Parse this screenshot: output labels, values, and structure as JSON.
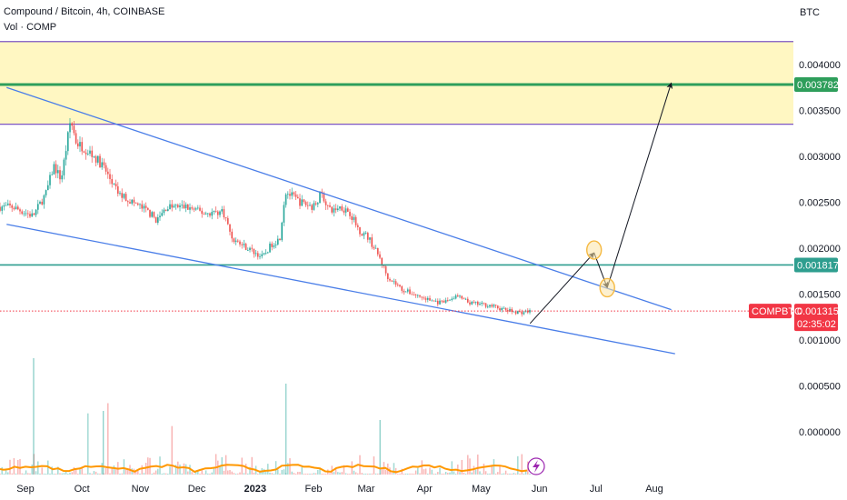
{
  "header": {
    "title": "Compound / Bitcoin, 4h, COINBASE",
    "volume_label": "Vol · COMP",
    "currency": "BTC"
  },
  "colors": {
    "up": "#26a69a",
    "down": "#ef5350",
    "trendline": "#4a7ee8",
    "zone_fill": "#fff7c2",
    "zone_border": "#7e57c2",
    "target_line": "#2e9e5b",
    "support_line": "#2e9e8f",
    "price_badge": "#f23645",
    "volume_ma": "#ff9800",
    "circle": "#f5b942"
  },
  "chart_data": {
    "type": "candlestick",
    "symbol": "COMPBTC",
    "interval": "4h",
    "exchange": "COINBASE",
    "x_tick_labels": [
      "Sep",
      "Oct",
      "Nov",
      "Dec",
      "2023",
      "Feb",
      "Mar",
      "Apr",
      "May",
      "Jun",
      "Jul",
      "Aug"
    ],
    "y_tick_labels": [
      "0.004000",
      "0.003500",
      "0.003000",
      "0.002500",
      "0.002000",
      "0.001500",
      "0.001000",
      "0.000500",
      "0.000000"
    ],
    "ylim": [
      -0.0001,
      0.0047
    ],
    "price_path": [
      [
        "2022-08-25",
        0.00245
      ],
      [
        "2022-09-05",
        0.00235
      ],
      [
        "2022-09-12",
        0.0026
      ],
      [
        "2022-09-16",
        0.0029
      ],
      [
        "2022-09-20",
        0.00275
      ],
      [
        "2022-09-25",
        0.0034
      ],
      [
        "2022-09-28",
        0.00315
      ],
      [
        "2022-10-05",
        0.00305
      ],
      [
        "2022-10-12",
        0.0029
      ],
      [
        "2022-10-20",
        0.0026
      ],
      [
        "2022-10-28",
        0.0025
      ],
      [
        "2022-11-05",
        0.0024
      ],
      [
        "2022-11-10",
        0.0023
      ],
      [
        "2022-11-15",
        0.00245
      ],
      [
        "2022-11-25",
        0.00245
      ],
      [
        "2022-12-05",
        0.00238
      ],
      [
        "2022-12-15",
        0.0024
      ],
      [
        "2022-12-20",
        0.0021
      ],
      [
        "2022-12-28",
        0.002
      ],
      [
        "2023-01-05",
        0.0019
      ],
      [
        "2023-01-10",
        0.00205
      ],
      [
        "2023-01-14",
        0.0021
      ],
      [
        "2023-01-17",
        0.00262
      ],
      [
        "2023-01-25",
        0.0025
      ],
      [
        "2023-02-01",
        0.00245
      ],
      [
        "2023-02-05",
        0.0026
      ],
      [
        "2023-02-10",
        0.0024
      ],
      [
        "2023-02-15",
        0.00245
      ],
      [
        "2023-02-20",
        0.0024
      ],
      [
        "2023-02-25",
        0.0022
      ],
      [
        "2023-03-02",
        0.00212
      ],
      [
        "2023-03-08",
        0.0019
      ],
      [
        "2023-03-12",
        0.0017
      ],
      [
        "2023-03-20",
        0.00155
      ],
      [
        "2023-04-01",
        0.00145
      ],
      [
        "2023-04-10",
        0.0014
      ],
      [
        "2023-04-18",
        0.00148
      ],
      [
        "2023-04-25",
        0.0014
      ],
      [
        "2023-05-05",
        0.00138
      ],
      [
        "2023-05-15",
        0.00132
      ],
      [
        "2023-05-22",
        0.0013
      ],
      [
        "2023-05-27",
        0.001315
      ]
    ],
    "current_price": {
      "symbol": "COMPBTC",
      "value": "0.001315",
      "countdown": "02:35:02"
    },
    "horizontal_levels": [
      {
        "value": 0.003782,
        "label": "0.003782",
        "kind": "target"
      },
      {
        "value": 0.001817,
        "label": "0.001817",
        "kind": "support"
      }
    ],
    "zone": {
      "from": 0.00335,
      "to": 0.00425
    },
    "trendlines": [
      {
        "from": [
          "2022-08-22",
          0.00375
        ],
        "to": [
          "2023-08-10",
          0.00133
        ]
      },
      {
        "from": [
          "2022-08-22",
          0.00226
        ],
        "to": [
          "2023-08-12",
          0.00085
        ]
      }
    ],
    "projection": [
      [
        "2023-05-27",
        0.00118
      ],
      [
        "2023-06-30",
        0.00195
      ],
      [
        "2023-07-07",
        0.00157
      ],
      [
        "2023-08-10",
        0.0038
      ]
    ],
    "circles": [
      [
        "2023-06-30",
        0.00198
      ],
      [
        "2023-07-07",
        0.00157
      ]
    ],
    "grid": false,
    "volume": {
      "label": "Vol · COMP",
      "moving_average": true
    }
  }
}
